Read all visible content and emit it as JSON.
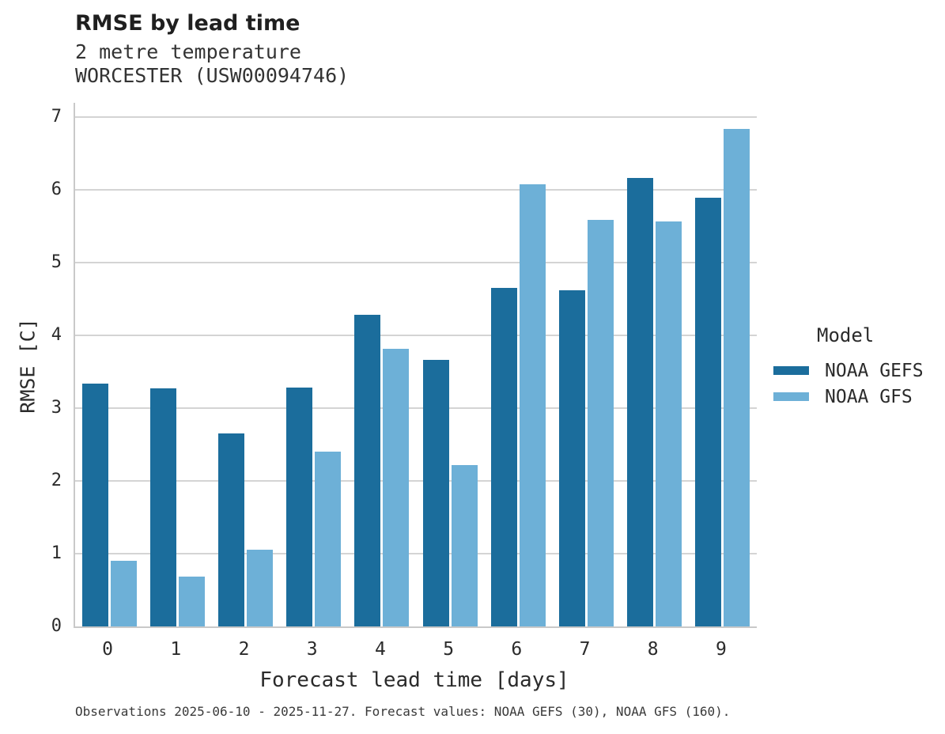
{
  "header": {
    "title": "RMSE by lead time",
    "subtitle_line1": "2 metre temperature",
    "subtitle_line2": "WORCESTER (USW00094746)"
  },
  "chart_data": {
    "type": "bar",
    "title": "RMSE by lead time",
    "subtitle": [
      "2 metre temperature",
      "WORCESTER (USW00094746)"
    ],
    "xlabel": "Forecast lead time [days]",
    "ylabel": "RMSE [C]",
    "categories": [
      "0",
      "1",
      "2",
      "3",
      "4",
      "5",
      "6",
      "7",
      "8",
      "9"
    ],
    "series": [
      {
        "name": "NOAA GEFS",
        "color": "#1b6d9c",
        "values": [
          3.34,
          3.27,
          2.65,
          3.29,
          4.28,
          3.67,
          4.66,
          4.62,
          6.17,
          5.9
        ]
      },
      {
        "name": "NOAA GFS",
        "color": "#6db0d7",
        "values": [
          0.9,
          0.68,
          1.05,
          2.4,
          3.82,
          2.22,
          6.08,
          5.59,
          5.57,
          6.84
        ]
      }
    ],
    "ylim": [
      0,
      7.2
    ],
    "yticks": [
      0,
      1,
      2,
      3,
      4,
      5,
      6,
      7
    ],
    "grid": true,
    "legend_title": "Model",
    "legend_position": "right"
  },
  "legend": {
    "title": "Model",
    "entries": [
      {
        "label": "NOAA GEFS",
        "color": "#1b6d9c"
      },
      {
        "label": "NOAA GFS",
        "color": "#6db0d7"
      }
    ]
  },
  "caption": "Observations 2025-06-10 - 2025-11-27. Forecast values: NOAA GEFS (30), NOAA GFS (160)."
}
